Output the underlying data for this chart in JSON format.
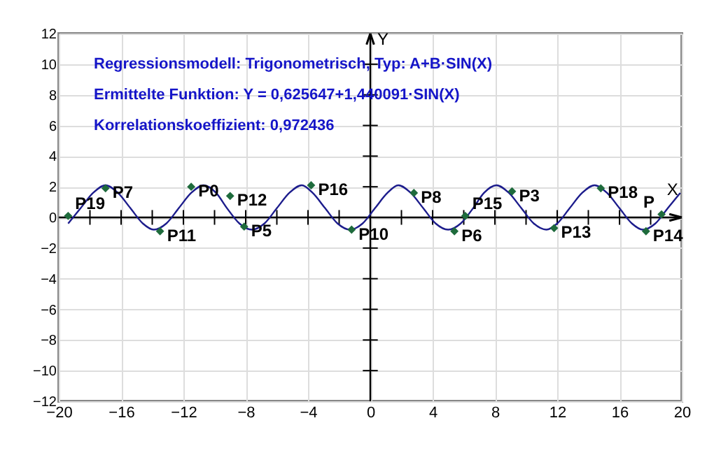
{
  "chart_data": {
    "type": "scatter",
    "xlabel": "X",
    "ylabel": "Y",
    "xlim": [
      -20,
      20
    ],
    "ylim": [
      -12,
      12
    ],
    "xticks": [
      -20,
      -16,
      -12,
      -8,
      -4,
      0,
      4,
      8,
      12,
      16,
      20
    ],
    "yticks": [
      -12,
      -10,
      -8,
      -6,
      -4,
      -2,
      0,
      2,
      4,
      6,
      8,
      10,
      12
    ],
    "grid": true,
    "series": [
      {
        "type": "line",
        "color": "#1c1c8c",
        "line_style": "solid",
        "x": [
          -19.4,
          -18.6,
          -17.8,
          -17.0,
          -16.2,
          -15.4,
          -14.6,
          -13.9,
          -13.1,
          -12.3,
          -11.5,
          -10.7,
          -9.9,
          -9.2,
          -8.4,
          -7.6,
          -6.8,
          -6.0,
          -5.2,
          -4.4,
          -3.7,
          -2.9,
          -2.1,
          -1.3,
          -0.5,
          0.3,
          1.1,
          1.8,
          2.6,
          3.4,
          4.2,
          5.0,
          5.8,
          6.6,
          7.3,
          8.1,
          8.9,
          9.7,
          10.5,
          11.3,
          12.0,
          12.8,
          13.6,
          14.4,
          15.2,
          16.0,
          16.8,
          17.5,
          18.3,
          19.1,
          19.9
        ],
        "values": [
          -0.4,
          0.6,
          1.6,
          2.1,
          1.6,
          0.6,
          -0.4,
          -0.8,
          -0.4,
          0.6,
          1.6,
          2.1,
          1.6,
          0.6,
          -0.4,
          -0.8,
          -0.4,
          0.6,
          1.6,
          2.1,
          1.6,
          0.6,
          -0.4,
          -0.8,
          -0.4,
          0.6,
          1.6,
          2.1,
          1.6,
          0.6,
          -0.4,
          -0.8,
          -0.4,
          0.6,
          1.6,
          2.1,
          1.6,
          0.6,
          -0.4,
          -0.8,
          -0.4,
          0.6,
          1.6,
          2.1,
          1.6,
          0.6,
          -0.4,
          -0.8,
          -0.4,
          0.6,
          1.6
        ]
      },
      {
        "color": "#1e6b3c",
        "marker": "diamond",
        "x": [
          -19.4,
          -17.0,
          -11.5,
          -9.0,
          -13.5,
          -8.1,
          -3.8,
          -1.2,
          2.8,
          5.4,
          6.1,
          9.1,
          11.8,
          14.8,
          17.7,
          18.7
        ],
        "values": [
          0.1,
          1.9,
          2.0,
          1.4,
          -0.9,
          -0.6,
          2.1,
          -0.8,
          1.6,
          -0.9,
          0.1,
          1.7,
          -0.7,
          1.9,
          -0.9,
          0.2
        ]
      }
    ],
    "annotations": [
      "Regressionsmodell: Trigonometrisch, Typ: A+B·SIN(X)",
      "Ermittelte Funktion: Y = 0,625647+1,440091·SIN(X)",
      "Korrelationskoeffizient: 0,972436",
      {
        "text": "P19",
        "x": -19.4,
        "y": 0.1
      },
      {
        "text": "P7",
        "x": -17.0,
        "y": 1.9
      },
      {
        "text": "P0",
        "x": -11.5,
        "y": 2.0
      },
      {
        "text": "P12",
        "x": -9.0,
        "y": 1.4
      },
      {
        "text": "P11",
        "x": -13.5,
        "y": -0.9
      },
      {
        "text": "P5",
        "x": -8.1,
        "y": -0.6
      },
      {
        "text": "P16",
        "x": -3.8,
        "y": 2.1
      },
      {
        "text": "P10",
        "x": -1.2,
        "y": -0.8
      },
      {
        "text": "P8",
        "x": 2.8,
        "y": 1.6
      },
      {
        "text": "P6",
        "x": 5.4,
        "y": -0.9
      },
      {
        "text": "P15",
        "x": 6.1,
        "y": 0.1
      },
      {
        "text": "P3",
        "x": 9.1,
        "y": 1.7
      },
      {
        "text": "P13",
        "x": 11.8,
        "y": -0.7
      },
      {
        "text": "P18",
        "x": 14.8,
        "y": 1.9
      },
      {
        "text": "P14",
        "x": 17.7,
        "y": -0.9
      },
      {
        "text": "P",
        "x": 18.7,
        "y": 0.2
      }
    ]
  }
}
